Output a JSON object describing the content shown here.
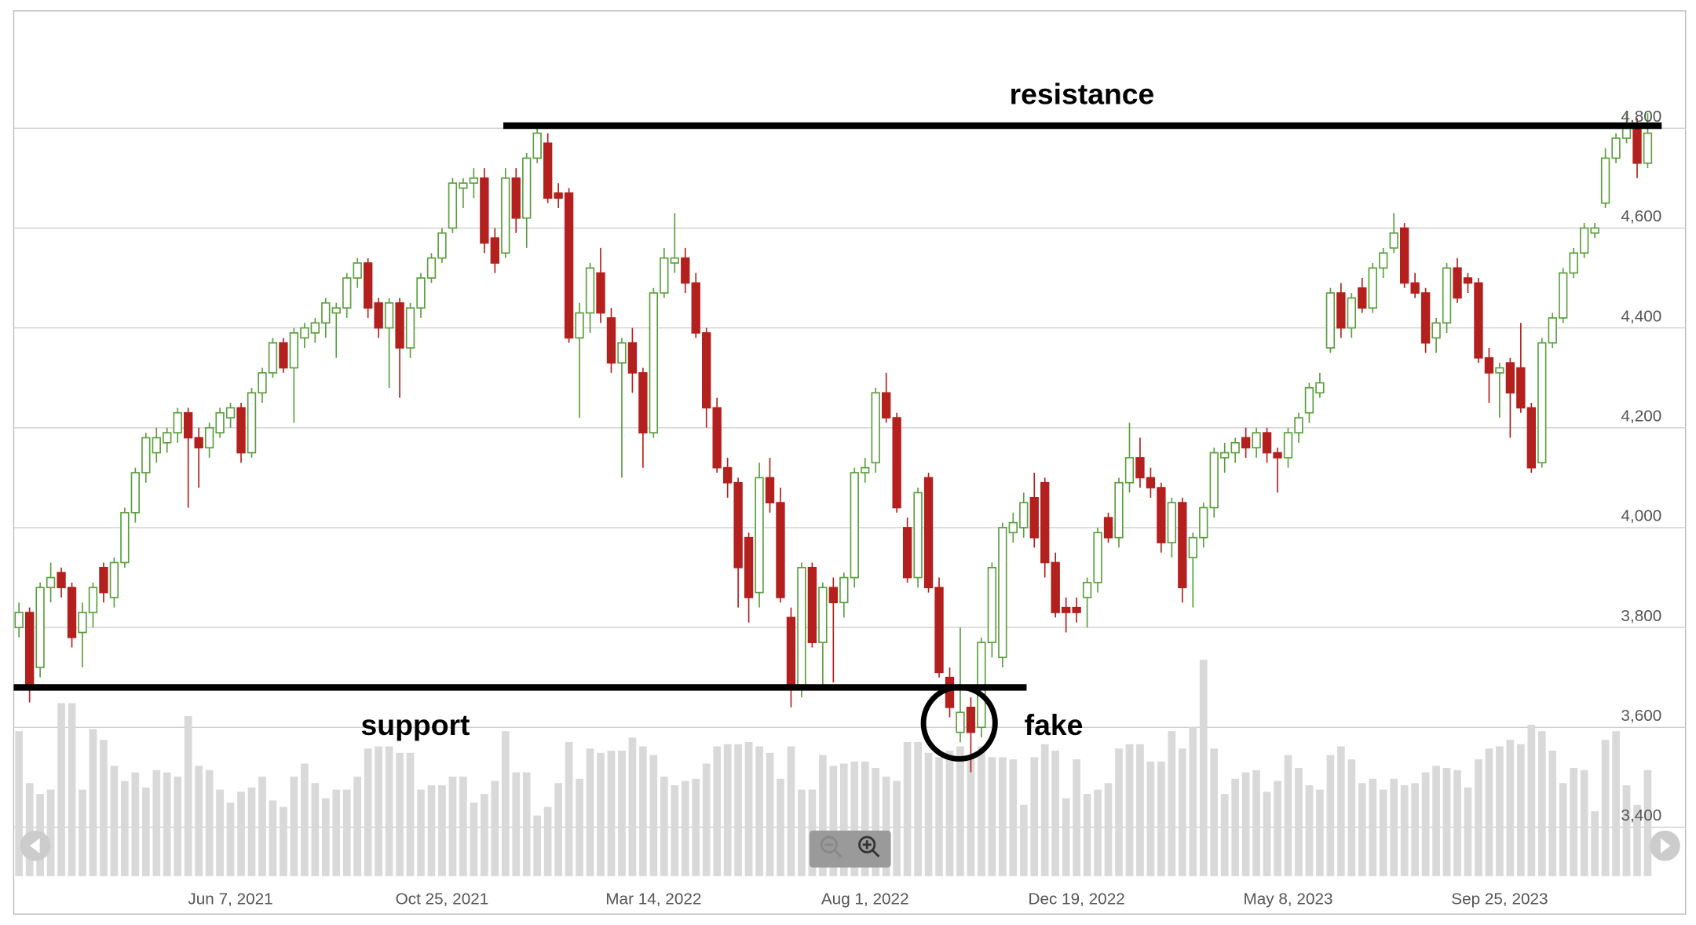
{
  "chart_data": {
    "type": "candlestick",
    "categories": [
      null,
      null,
      null,
      null,
      null,
      null,
      null,
      null,
      null,
      null,
      null,
      null,
      null,
      null,
      null,
      null,
      null,
      null,
      null,
      null,
      "Jun 7, 2021",
      null,
      null,
      null,
      null,
      null,
      null,
      null,
      null,
      null,
      null,
      null,
      null,
      null,
      null,
      null,
      null,
      null,
      null,
      null,
      "Oct 25, 2021",
      null,
      null,
      null,
      null,
      null,
      null,
      null,
      null,
      null,
      null,
      null,
      null,
      null,
      null,
      null,
      null,
      null,
      null,
      null,
      "Mar 14, 2022",
      null,
      null,
      null,
      null,
      null,
      null,
      null,
      null,
      null,
      null,
      null,
      null,
      null,
      null,
      null,
      null,
      null,
      null,
      null,
      "Aug 1, 2022",
      null,
      null,
      null,
      null,
      null,
      null,
      null,
      null,
      null,
      null,
      null,
      null,
      null,
      null,
      null,
      null,
      null,
      null,
      null,
      "Dec 19, 2022",
      null,
      null,
      null,
      null,
      null,
      null,
      null,
      null,
      null,
      null,
      null,
      null,
      null,
      null,
      null,
      null,
      null,
      null,
      null,
      "May 8, 2023",
      null,
      null,
      null,
      null,
      null,
      null,
      null,
      null,
      null,
      null,
      null,
      null,
      null,
      null,
      null,
      null,
      null,
      null,
      null,
      "Sep 25, 2023",
      null,
      null,
      null,
      null,
      null,
      null,
      null,
      null,
      null,
      null,
      null,
      null,
      null,
      null
    ],
    "ohlc": [
      [
        3800,
        3850,
        3780,
        3830
      ],
      [
        3830,
        3840,
        3650,
        3680
      ],
      [
        3720,
        3890,
        3700,
        3880
      ],
      [
        3880,
        3930,
        3850,
        3900
      ],
      [
        3910,
        3920,
        3860,
        3880
      ],
      [
        3880,
        3890,
        3760,
        3780
      ],
      [
        3790,
        3850,
        3720,
        3830
      ],
      [
        3830,
        3890,
        3800,
        3880
      ],
      [
        3920,
        3930,
        3850,
        3870
      ],
      [
        3860,
        3940,
        3840,
        3930
      ],
      [
        3930,
        4040,
        3920,
        4030
      ],
      [
        4030,
        4120,
        4010,
        4110
      ],
      [
        4110,
        4190,
        4090,
        4180
      ],
      [
        4150,
        4200,
        4130,
        4180
      ],
      [
        4170,
        4200,
        4150,
        4190
      ],
      [
        4190,
        4240,
        4170,
        4230
      ],
      [
        4230,
        4240,
        4040,
        4180
      ],
      [
        4180,
        4200,
        4080,
        4160
      ],
      [
        4160,
        4210,
        4140,
        4200
      ],
      [
        4190,
        4240,
        4180,
        4230
      ],
      [
        4220,
        4250,
        4200,
        4240
      ],
      [
        4240,
        4250,
        4130,
        4150
      ],
      [
        4150,
        4280,
        4140,
        4270
      ],
      [
        4270,
        4320,
        4250,
        4310
      ],
      [
        4310,
        4380,
        4300,
        4370
      ],
      [
        4370,
        4380,
        4310,
        4320
      ],
      [
        4320,
        4400,
        4210,
        4390
      ],
      [
        4380,
        4410,
        4360,
        4400
      ],
      [
        4390,
        4420,
        4370,
        4410
      ],
      [
        4410,
        4460,
        4380,
        4450
      ],
      [
        4430,
        4450,
        4340,
        4440
      ],
      [
        4440,
        4510,
        4420,
        4500
      ],
      [
        4500,
        4540,
        4480,
        4530
      ],
      [
        4530,
        4540,
        4420,
        4440
      ],
      [
        4450,
        4460,
        4380,
        4400
      ],
      [
        4400,
        4460,
        4280,
        4450
      ],
      [
        4450,
        4460,
        4260,
        4360
      ],
      [
        4360,
        4450,
        4340,
        4440
      ],
      [
        4440,
        4510,
        4420,
        4500
      ],
      [
        4500,
        4550,
        4490,
        4540
      ],
      [
        4540,
        4600,
        4530,
        4590
      ],
      [
        4600,
        4700,
        4590,
        4690
      ],
      [
        4680,
        4700,
        4640,
        4690
      ],
      [
        4690,
        4720,
        4660,
        4700
      ],
      [
        4700,
        4720,
        4550,
        4570
      ],
      [
        4580,
        4600,
        4510,
        4530
      ],
      [
        4550,
        4720,
        4540,
        4700
      ],
      [
        4700,
        4720,
        4590,
        4620
      ],
      [
        4620,
        4750,
        4560,
        4740
      ],
      [
        4740,
        4800,
        4730,
        4790
      ],
      [
        4770,
        4790,
        4650,
        4660
      ],
      [
        4670,
        4690,
        4640,
        4660
      ],
      [
        4670,
        4680,
        4370,
        4380
      ],
      [
        4380,
        4450,
        4220,
        4430
      ],
      [
        4430,
        4530,
        4390,
        4520
      ],
      [
        4510,
        4560,
        4410,
        4430
      ],
      [
        4420,
        4440,
        4310,
        4330
      ],
      [
        4330,
        4380,
        4100,
        4370
      ],
      [
        4370,
        4400,
        4270,
        4310
      ],
      [
        4310,
        4320,
        4120,
        4190
      ],
      [
        4190,
        4480,
        4180,
        4470
      ],
      [
        4470,
        4560,
        4460,
        4540
      ],
      [
        4530,
        4630,
        4510,
        4540
      ],
      [
        4540,
        4560,
        4470,
        4490
      ],
      [
        4490,
        4510,
        4380,
        4390
      ],
      [
        4390,
        4400,
        4200,
        4240
      ],
      [
        4240,
        4260,
        4110,
        4120
      ],
      [
        4120,
        4140,
        4060,
        4090
      ],
      [
        4090,
        4100,
        3840,
        3920
      ],
      [
        3980,
        3990,
        3810,
        3860
      ],
      [
        3870,
        4130,
        3840,
        4100
      ],
      [
        4100,
        4140,
        4030,
        4050
      ],
      [
        4050,
        4080,
        3850,
        3860
      ],
      [
        3820,
        3840,
        3640,
        3680
      ],
      [
        3680,
        3930,
        3660,
        3920
      ],
      [
        3920,
        3930,
        3760,
        3770
      ],
      [
        3770,
        3890,
        3680,
        3880
      ],
      [
        3880,
        3900,
        3690,
        3850
      ],
      [
        3850,
        3910,
        3820,
        3900
      ],
      [
        3900,
        4120,
        3880,
        4110
      ],
      [
        4110,
        4140,
        4090,
        4120
      ],
      [
        4130,
        4280,
        4110,
        4270
      ],
      [
        4270,
        4310,
        4210,
        4220
      ],
      [
        4220,
        4230,
        4030,
        4040
      ],
      [
        4000,
        4020,
        3890,
        3900
      ],
      [
        3900,
        4080,
        3880,
        4070
      ],
      [
        4100,
        4110,
        3870,
        3880
      ],
      [
        3880,
        3900,
        3700,
        3710
      ],
      [
        3700,
        3720,
        3620,
        3640
      ],
      [
        3590,
        3800,
        3570,
        3630
      ],
      [
        3640,
        3660,
        3510,
        3590
      ],
      [
        3600,
        3780,
        3580,
        3770
      ],
      [
        3770,
        3930,
        3740,
        3920
      ],
      [
        3740,
        4010,
        3720,
        4000
      ],
      [
        3990,
        4030,
        3970,
        4010
      ],
      [
        4000,
        4070,
        3980,
        4050
      ],
      [
        4060,
        4110,
        3960,
        3980
      ],
      [
        4090,
        4100,
        3900,
        3930
      ],
      [
        3930,
        3950,
        3820,
        3830
      ],
      [
        3840,
        3860,
        3790,
        3830
      ],
      [
        3840,
        3860,
        3810,
        3830
      ],
      [
        3860,
        3900,
        3800,
        3890
      ],
      [
        3890,
        4000,
        3870,
        3990
      ],
      [
        4020,
        4030,
        3970,
        3980
      ],
      [
        3980,
        4100,
        3960,
        4090
      ],
      [
        4090,
        4210,
        4070,
        4140
      ],
      [
        4140,
        4180,
        4080,
        4100
      ],
      [
        4100,
        4120,
        4060,
        4080
      ],
      [
        4080,
        4090,
        3950,
        3970
      ],
      [
        3970,
        4060,
        3940,
        4050
      ],
      [
        4050,
        4060,
        3850,
        3880
      ],
      [
        3940,
        3990,
        3840,
        3980
      ],
      [
        3980,
        4050,
        3960,
        4040
      ],
      [
        4040,
        4160,
        4020,
        4150
      ],
      [
        4140,
        4170,
        4110,
        4150
      ],
      [
        4150,
        4180,
        4130,
        4170
      ],
      [
        4180,
        4200,
        4140,
        4160
      ],
      [
        4160,
        4200,
        4140,
        4190
      ],
      [
        4190,
        4200,
        4130,
        4150
      ],
      [
        4150,
        4160,
        4070,
        4140
      ],
      [
        4140,
        4200,
        4120,
        4190
      ],
      [
        4190,
        4230,
        4170,
        4220
      ],
      [
        4230,
        4290,
        4210,
        4280
      ],
      [
        4270,
        4310,
        4260,
        4290
      ],
      [
        4360,
        4480,
        4350,
        4470
      ],
      [
        4470,
        4490,
        4380,
        4400
      ],
      [
        4400,
        4470,
        4380,
        4460
      ],
      [
        4480,
        4500,
        4430,
        4440
      ],
      [
        4440,
        4530,
        4430,
        4520
      ],
      [
        4520,
        4560,
        4500,
        4550
      ],
      [
        4560,
        4630,
        4550,
        4590
      ],
      [
        4600,
        4610,
        4480,
        4490
      ],
      [
        4490,
        4510,
        4460,
        4470
      ],
      [
        4470,
        4480,
        4350,
        4370
      ],
      [
        4380,
        4420,
        4350,
        4410
      ],
      [
        4410,
        4530,
        4390,
        4520
      ],
      [
        4520,
        4540,
        4450,
        4460
      ],
      [
        4500,
        4510,
        4470,
        4490
      ],
      [
        4490,
        4500,
        4330,
        4340
      ],
      [
        4340,
        4360,
        4250,
        4310
      ],
      [
        4310,
        4330,
        4220,
        4320
      ],
      [
        4330,
        4340,
        4180,
        4270
      ],
      [
        4320,
        4410,
        4230,
        4240
      ],
      [
        4240,
        4250,
        4110,
        4120
      ],
      [
        4130,
        4380,
        4120,
        4370
      ],
      [
        4370,
        4430,
        4360,
        4420
      ],
      [
        4420,
        4520,
        4410,
        4510
      ],
      [
        4510,
        4560,
        4500,
        4550
      ],
      [
        4550,
        4610,
        4540,
        4600
      ],
      [
        4590,
        4610,
        4580,
        4600
      ],
      [
        4650,
        4760,
        4640,
        4740
      ],
      [
        4740,
        4790,
        4730,
        4780
      ],
      [
        4780,
        4830,
        4770,
        4800
      ],
      [
        4800,
        4820,
        4700,
        4730
      ],
      [
        4730,
        4830,
        4720,
        4790
      ]
    ],
    "up_color": "#5a9e3e",
    "down_color": "#b3201e",
    "volume": {
      "axis": "y2",
      "color": "#d9d9d9",
      "values": [
        67,
        43,
        38,
        40,
        80,
        80,
        40,
        68,
        63,
        51,
        44,
        48,
        41,
        49,
        48,
        46,
        74,
        51,
        49,
        40,
        34,
        39,
        41,
        46,
        35,
        32,
        46,
        52,
        43,
        36,
        40,
        40,
        46,
        59,
        60,
        60,
        57,
        57,
        40,
        42,
        42,
        46,
        46,
        34,
        38,
        44,
        67,
        48,
        48,
        28,
        32,
        43,
        62,
        45,
        59,
        57,
        58,
        58,
        64,
        60,
        56,
        46,
        42,
        44,
        45,
        52,
        60,
        61,
        61,
        62,
        60,
        57,
        45,
        60,
        40,
        40,
        56,
        51,
        52,
        53,
        53,
        50,
        46,
        44,
        62,
        62,
        57,
        55,
        58,
        60,
        56,
        60,
        55,
        55,
        54,
        33,
        55,
        61,
        58,
        36,
        54,
        38,
        40,
        43,
        59,
        61,
        61,
        53,
        53,
        67,
        59,
        69,
        100,
        59,
        38,
        45,
        48,
        49,
        39,
        44,
        56,
        50,
        42,
        40,
        56,
        60,
        54,
        43,
        45,
        40,
        45,
        42,
        43,
        48,
        51,
        50,
        49,
        41,
        54,
        59,
        60,
        63,
        61,
        70,
        67,
        58,
        43,
        50,
        49,
        30,
        63,
        67,
        42,
        33,
        49
      ]
    },
    "ylim": [
      3302,
      5035
    ],
    "yticks": [
      {
        "value": 3400,
        "label": "3,400"
      },
      {
        "value": 3600,
        "label": "3,600"
      },
      {
        "value": 3800,
        "label": "3,800"
      },
      {
        "value": 4000,
        "label": "4,000"
      },
      {
        "value": 4200,
        "label": "4,200"
      },
      {
        "value": 4400,
        "label": "4,400"
      },
      {
        "value": 4600,
        "label": "4,600"
      },
      {
        "value": 4800,
        "label": "4,800"
      }
    ],
    "y2lim": [
      0,
      400
    ],
    "grid": true,
    "annotations": [
      {
        "text": "resistance",
        "level": 4805
      },
      {
        "text": "support",
        "level": 3680
      },
      {
        "text": "fake"
      }
    ]
  }
}
